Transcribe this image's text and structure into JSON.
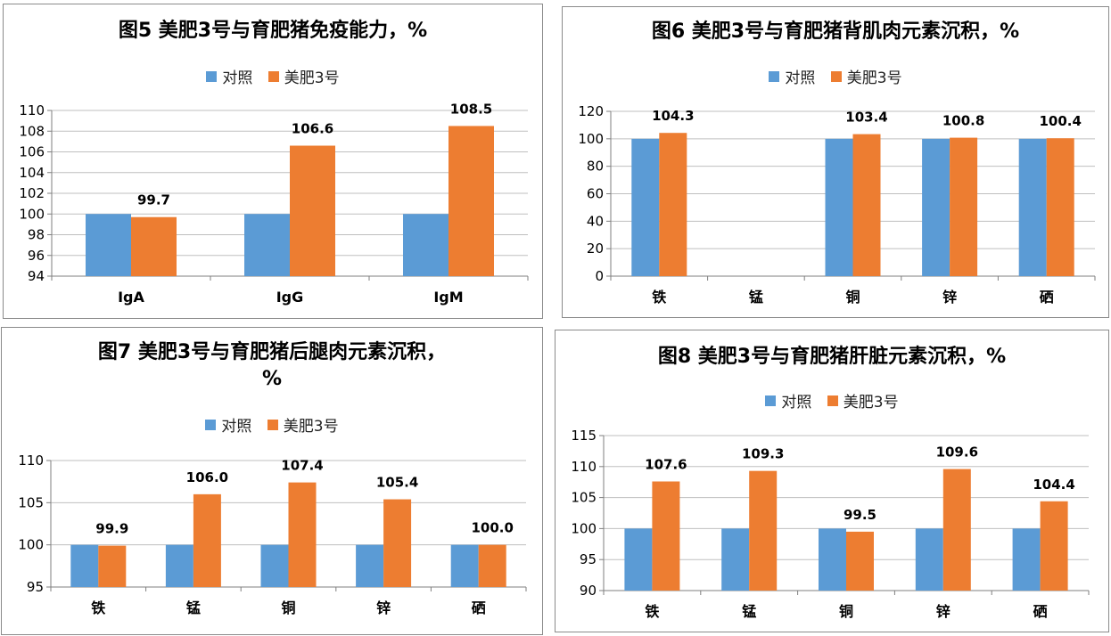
{
  "colors": {
    "control": "#5b9bd5",
    "treatment": "#ed7d31",
    "grid": "#bfbfbf",
    "axis": "#7f7f7f"
  },
  "legend": {
    "control": "对照",
    "treatment": "美肥3号"
  },
  "chart_data": [
    {
      "type": "bar",
      "title": "图5 美肥3号与育肥猪免疫能力，%",
      "categories": [
        "IgA",
        "IgG",
        "IgM"
      ],
      "series": [
        {
          "name": "对照",
          "values": [
            100,
            100,
            100
          ]
        },
        {
          "name": "美肥3号",
          "values": [
            99.7,
            106.6,
            108.5
          ]
        }
      ],
      "ylim": [
        94,
        110
      ],
      "yticks": [
        94,
        96,
        98,
        100,
        102,
        104,
        106,
        108,
        110
      ],
      "data_labels": [
        "99.7",
        "106.6",
        "108.5"
      ],
      "grid": true,
      "legend_position": "top"
    },
    {
      "type": "bar",
      "title": "图6 美肥3号与育肥猪背肌肉元素沉积，%",
      "categories": [
        "铁",
        "锰",
        "铜",
        "锌",
        "硒"
      ],
      "series": [
        {
          "name": "对照",
          "values": [
            100,
            null,
            100,
            100,
            100
          ]
        },
        {
          "name": "美肥3号",
          "values": [
            104.3,
            null,
            103.4,
            100.8,
            100.4
          ]
        }
      ],
      "ylim": [
        0,
        120
      ],
      "yticks": [
        0,
        20,
        40,
        60,
        80,
        100,
        120
      ],
      "data_labels": [
        "104.3",
        "",
        "103.4",
        "100.8",
        "100.4"
      ],
      "grid": true,
      "legend_position": "top"
    },
    {
      "type": "bar",
      "title": "图7 美肥3号与育肥猪后腿肉元素沉积，\n%",
      "categories": [
        "铁",
        "锰",
        "铜",
        "锌",
        "硒"
      ],
      "series": [
        {
          "name": "对照",
          "values": [
            100,
            100,
            100,
            100,
            100
          ]
        },
        {
          "name": "美肥3号",
          "values": [
            99.9,
            106.0,
            107.4,
            105.4,
            100.0
          ]
        }
      ],
      "ylim": [
        95,
        110
      ],
      "yticks": [
        95,
        100,
        105,
        110
      ],
      "data_labels": [
        "99.9",
        "106.0",
        "107.4",
        "105.4",
        "100.0"
      ],
      "grid": true,
      "legend_position": "top"
    },
    {
      "type": "bar",
      "title": "图8 美肥3号与育肥猪肝脏元素沉积，%",
      "categories": [
        "铁",
        "锰",
        "铜",
        "锌",
        "硒"
      ],
      "series": [
        {
          "name": "对照",
          "values": [
            100,
            100,
            100,
            100,
            100
          ]
        },
        {
          "name": "美肥3号",
          "values": [
            107.6,
            109.3,
            99.5,
            109.6,
            104.4
          ]
        }
      ],
      "ylim": [
        90,
        115
      ],
      "yticks": [
        90,
        95,
        100,
        105,
        110,
        115
      ],
      "data_labels": [
        "107.6",
        "109.3",
        "99.5",
        "109.6",
        "104.4"
      ],
      "grid": true,
      "legend_position": "top"
    }
  ]
}
